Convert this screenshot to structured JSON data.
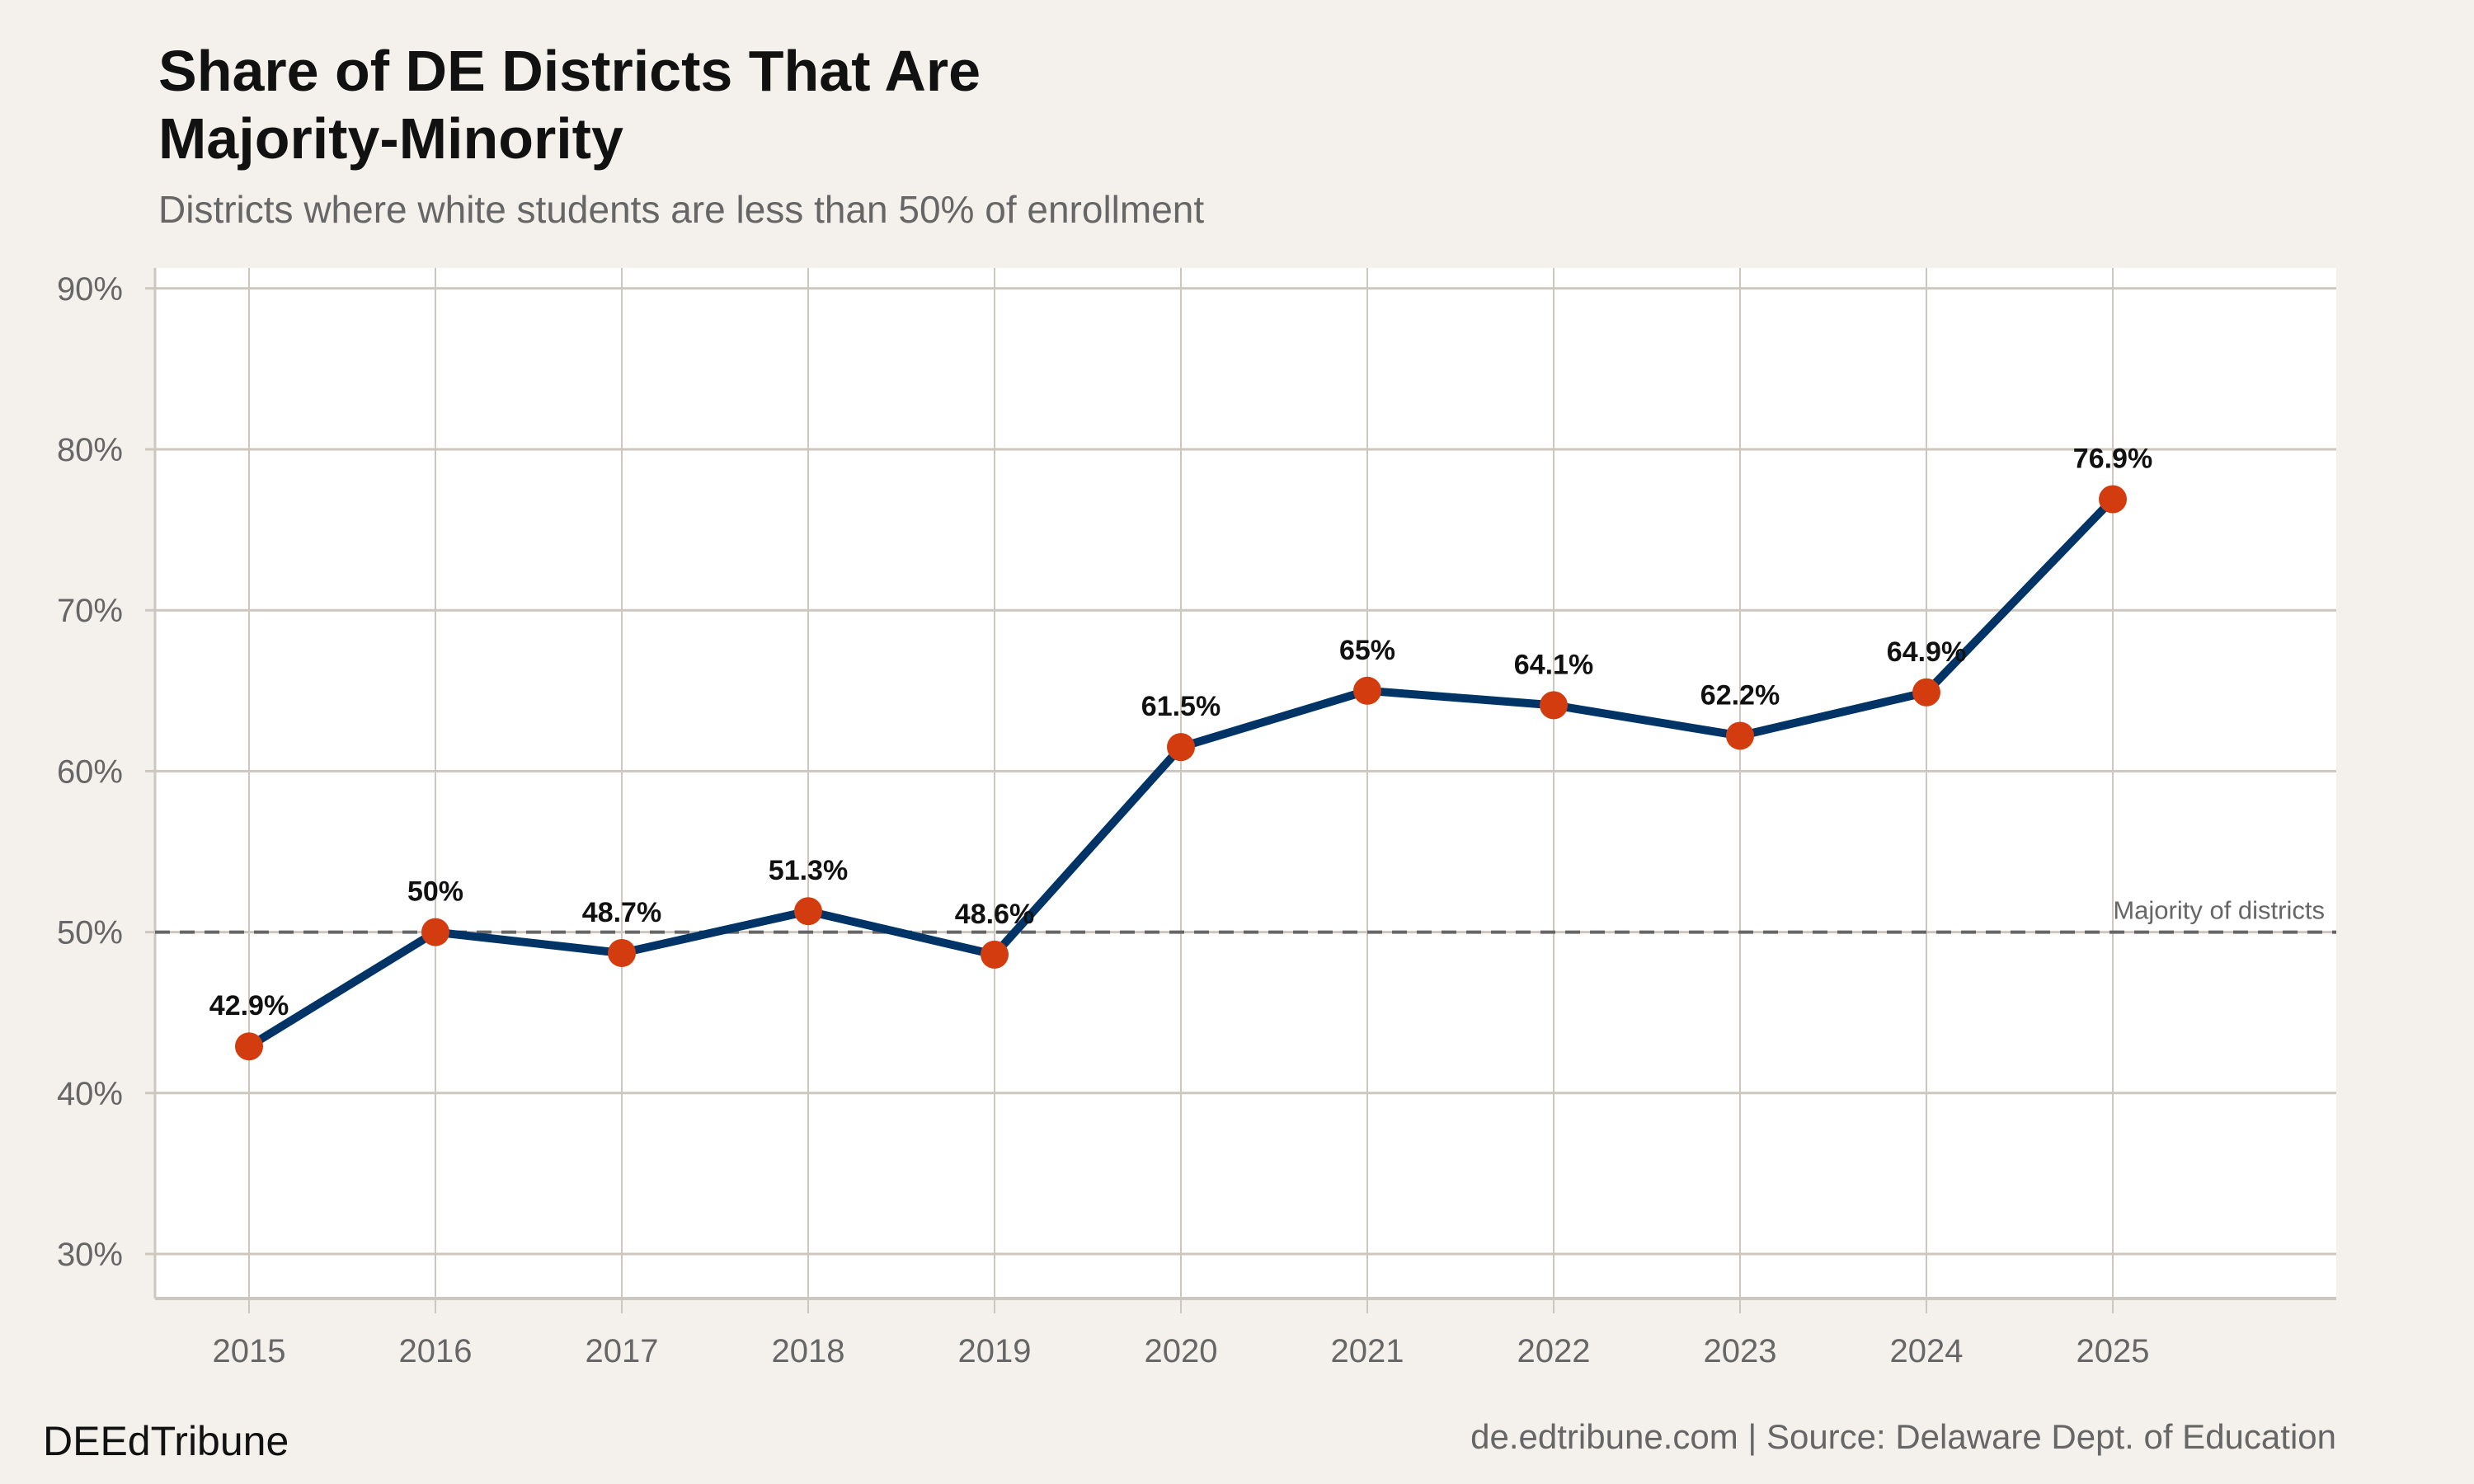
{
  "chart_data": {
    "type": "line",
    "title_lines": [
      "Share of DE Districts That Are",
      "Majority-Minority"
    ],
    "subtitle": "Districts where white students are less than 50% of enrollment",
    "x": [
      2015,
      2016,
      2017,
      2018,
      2019,
      2020,
      2021,
      2022,
      2023,
      2024,
      2025
    ],
    "x_tick_labels": [
      "2015",
      "2016",
      "2017",
      "2018",
      "2019",
      "2020",
      "2021",
      "2022",
      "2023",
      "2024",
      "2025"
    ],
    "values": [
      42.9,
      50,
      48.7,
      51.3,
      48.6,
      61.5,
      65,
      64.1,
      62.2,
      64.9,
      76.9
    ],
    "data_labels": [
      "42.9%",
      "50%",
      "48.7%",
      "51.3%",
      "48.6%",
      "61.5%",
      "65%",
      "64.1%",
      "62.2%",
      "64.9%",
      "76.9%"
    ],
    "y_ticks": [
      30,
      40,
      50,
      60,
      70,
      80,
      90
    ],
    "y_tick_labels": [
      "30%",
      "40%",
      "50%",
      "60%",
      "70%",
      "80%",
      "90%"
    ],
    "ylim": [
      27.3,
      91.3
    ],
    "xlim": [
      2014.5,
      2026.2
    ],
    "grid": true,
    "reference_line": {
      "value": 50,
      "label": "Majority of districts",
      "style": "dashed"
    },
    "colors": {
      "line": "#003366",
      "points": "#d23c0f",
      "reference": "#666666",
      "background": "#f4f1ec",
      "panel": "#ffffff",
      "grid": "#cdc7bf"
    }
  },
  "footer": {
    "brand": "DEEdTribune",
    "source": "de.edtribune.com | Source: Delaware Dept. of Education"
  }
}
